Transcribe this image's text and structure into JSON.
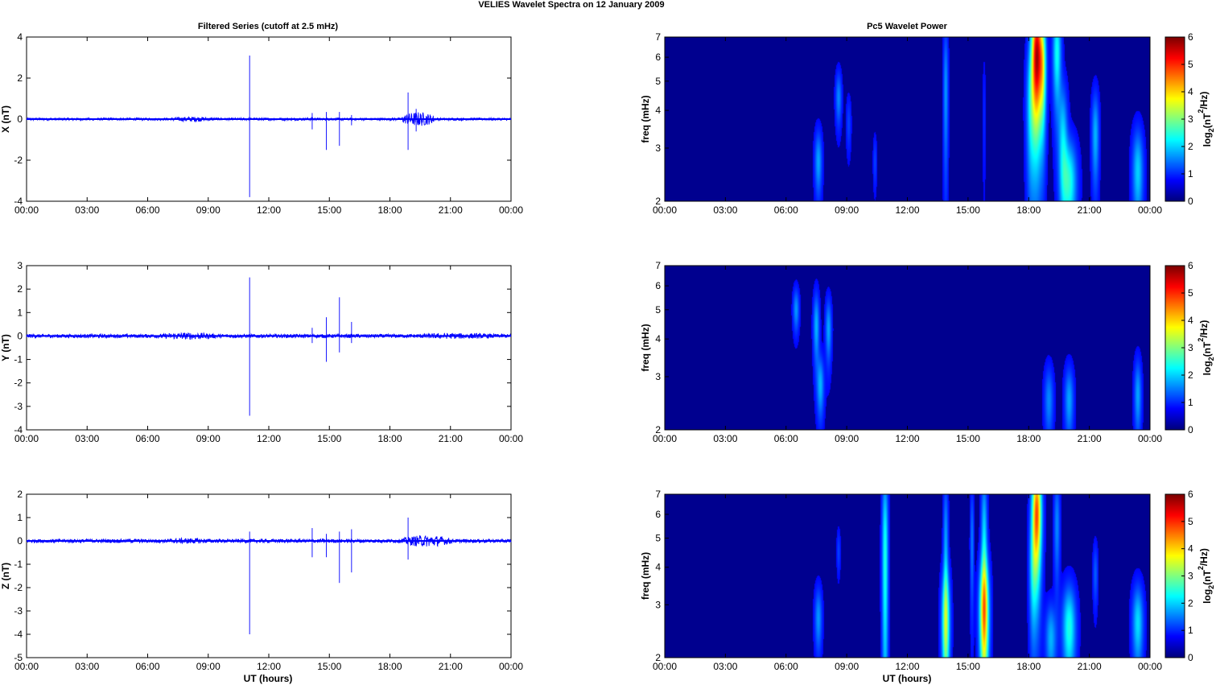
{
  "figure": {
    "title": "VELIES Wavelet Spectra on 12 January   2009",
    "left_title": "Filtered Series (cutoff at 2.5 mHz)",
    "right_title": "Pc5 Wavelet Power",
    "x_label": "UT (hours)"
  },
  "chart_data": [
    {
      "type": "line",
      "name": "X",
      "ylabel": "X (nT)",
      "xlim": [
        0,
        24
      ],
      "ylim": [
        -4,
        4
      ],
      "yticks": [
        -4,
        -2,
        0,
        2,
        4
      ],
      "xticks": [
        "00:00",
        "03:00",
        "06:00",
        "09:00",
        "12:00",
        "15:00",
        "18:00",
        "21:00",
        "00:00"
      ],
      "color": "#0000ff",
      "baseline_amplitude": 0.06,
      "spikes": [
        [
          11.05,
          3.1,
          -3.8
        ],
        [
          14.15,
          0.3,
          -0.5
        ],
        [
          14.85,
          0.35,
          -1.5
        ],
        [
          15.5,
          0.35,
          -1.3
        ],
        [
          16.1,
          0.2,
          -0.3
        ],
        [
          18.9,
          1.3,
          -1.5
        ],
        [
          19.3,
          0.5,
          -0.6
        ]
      ],
      "active_bursts": [
        [
          7.0,
          9.5,
          0.12
        ],
        [
          18.6,
          20.2,
          0.35
        ]
      ]
    },
    {
      "type": "line",
      "name": "Y",
      "ylabel": "Y (nT)",
      "xlim": [
        0,
        24
      ],
      "ylim": [
        -4,
        3
      ],
      "yticks": [
        -4,
        -3,
        -2,
        -1,
        0,
        1,
        2,
        3
      ],
      "xticks": [
        "00:00",
        "03:00",
        "06:00",
        "09:00",
        "12:00",
        "15:00",
        "18:00",
        "21:00",
        "00:00"
      ],
      "color": "#0000ff",
      "baseline_amplitude": 0.08,
      "spikes": [
        [
          11.05,
          2.5,
          -3.4
        ],
        [
          14.15,
          0.35,
          -0.3
        ],
        [
          14.85,
          0.8,
          -1.1
        ],
        [
          15.5,
          1.65,
          -0.7
        ],
        [
          16.1,
          0.6,
          -0.3
        ]
      ],
      "active_bursts": [
        [
          6.5,
          9.5,
          0.15
        ],
        [
          18.5,
          24,
          0.12
        ]
      ]
    },
    {
      "type": "line",
      "name": "Z",
      "ylabel": "Z (nT)",
      "xlim": [
        0,
        24
      ],
      "ylim": [
        -5,
        2
      ],
      "yticks": [
        -5,
        -4,
        -3,
        -2,
        -1,
        0,
        1,
        2
      ],
      "xticks": [
        "00:00",
        "03:00",
        "06:00",
        "09:00",
        "12:00",
        "15:00",
        "18:00",
        "21:00",
        "00:00"
      ],
      "color": "#0000ff",
      "baseline_amplitude": 0.08,
      "spikes": [
        [
          11.05,
          0.4,
          -4.0
        ],
        [
          14.15,
          0.55,
          -0.7
        ],
        [
          14.85,
          0.3,
          -0.7
        ],
        [
          15.5,
          0.4,
          -1.8
        ],
        [
          16.1,
          0.5,
          -1.35
        ],
        [
          18.9,
          1.0,
          -0.8
        ]
      ],
      "active_bursts": [
        [
          6.5,
          9.5,
          0.12
        ],
        [
          18.6,
          21,
          0.25
        ]
      ]
    },
    {
      "type": "heatmap",
      "name": "X",
      "ylabel": "freq (mHz)",
      "xlim": [
        0,
        24
      ],
      "ylim": [
        2,
        7
      ],
      "yscale": "log",
      "yticks": [
        2,
        3,
        4,
        5,
        6,
        7
      ],
      "xticks": [
        "00:00",
        "03:00",
        "06:00",
        "09:00",
        "12:00",
        "15:00",
        "18:00",
        "21:00",
        "00:00"
      ],
      "colorbar": {
        "label": "log2(nT^2/Hz)",
        "min": 0,
        "max": 6,
        "ticks": [
          0,
          1,
          2,
          3,
          4,
          5,
          6
        ]
      },
      "blobs": [
        [
          7.6,
          2.7,
          0.12,
          0.45,
          1.2
        ],
        [
          8.6,
          4.4,
          0.1,
          0.6,
          1.0
        ],
        [
          9.1,
          3.6,
          0.08,
          0.5,
          0.5
        ],
        [
          10.4,
          2.7,
          0.06,
          0.35,
          0.5
        ],
        [
          13.9,
          4.6,
          0.08,
          1.8,
          1.1
        ],
        [
          15.8,
          3.8,
          0.05,
          1.2,
          0.3
        ],
        [
          18.1,
          4.0,
          0.15,
          1.5,
          1.4
        ],
        [
          18.4,
          6.0,
          0.18,
          2.0,
          5.8
        ],
        [
          18.7,
          5.5,
          0.12,
          1.6,
          2.5
        ],
        [
          19.4,
          6.2,
          0.14,
          1.6,
          1.9
        ],
        [
          19.7,
          3.2,
          0.15,
          1.0,
          1.5
        ],
        [
          20.0,
          2.3,
          0.25,
          0.55,
          2.0
        ],
        [
          21.3,
          3.3,
          0.12,
          0.8,
          1.3
        ],
        [
          23.4,
          2.5,
          0.18,
          0.6,
          1.5
        ]
      ]
    },
    {
      "type": "heatmap",
      "name": "Y",
      "ylabel": "freq (mHz)",
      "xlim": [
        0,
        24
      ],
      "ylim": [
        2,
        7
      ],
      "yscale": "log",
      "yticks": [
        2,
        3,
        4,
        5,
        6,
        7
      ],
      "xticks": [
        "00:00",
        "03:00",
        "06:00",
        "09:00",
        "12:00",
        "15:00",
        "18:00",
        "21:00",
        "00:00"
      ],
      "colorbar": {
        "label": "log2(nT^2/Hz)",
        "min": 0,
        "max": 6,
        "ticks": [
          0,
          1,
          2,
          3,
          4,
          5,
          6
        ]
      },
      "blobs": [
        [
          6.5,
          5.0,
          0.1,
          0.55,
          1.1
        ],
        [
          7.5,
          4.4,
          0.1,
          0.8,
          1.3
        ],
        [
          7.7,
          2.8,
          0.12,
          0.45,
          1.3
        ],
        [
          8.1,
          4.3,
          0.1,
          0.7,
          1.2
        ],
        [
          19.0,
          2.5,
          0.15,
          0.45,
          1.0
        ],
        [
          20.0,
          2.5,
          0.15,
          0.45,
          1.2
        ],
        [
          23.4,
          2.6,
          0.12,
          0.5,
          1.2
        ]
      ]
    },
    {
      "type": "heatmap",
      "name": "Z",
      "ylabel": "freq (mHz)",
      "xlim": [
        0,
        24
      ],
      "ylim": [
        2,
        7
      ],
      "yscale": "log",
      "yticks": [
        2,
        3,
        4,
        5,
        6,
        7
      ],
      "xticks": [
        "00:00",
        "03:00",
        "06:00",
        "09:00",
        "12:00",
        "15:00",
        "18:00",
        "21:00",
        "00:00"
      ],
      "colorbar": {
        "label": "log2(nT^2/Hz)",
        "min": 0,
        "max": 6,
        "ticks": [
          0,
          1,
          2,
          3,
          4,
          5,
          6
        ]
      },
      "blobs": [
        [
          7.6,
          2.7,
          0.12,
          0.45,
          1.1
        ],
        [
          8.6,
          4.5,
          0.06,
          0.5,
          0.5
        ],
        [
          10.9,
          4.2,
          0.1,
          2.5,
          2.0
        ],
        [
          13.9,
          2.6,
          0.14,
          0.8,
          2.6
        ],
        [
          13.9,
          4.5,
          0.08,
          2.0,
          1.2
        ],
        [
          15.2,
          4.8,
          0.06,
          1.5,
          0.9
        ],
        [
          15.8,
          2.8,
          0.16,
          0.9,
          3.8
        ],
        [
          15.8,
          4.8,
          0.1,
          2.0,
          1.6
        ],
        [
          18.4,
          6.0,
          0.16,
          1.8,
          4.8
        ],
        [
          18.2,
          3.8,
          0.12,
          1.2,
          1.2
        ],
        [
          19.1,
          2.3,
          0.18,
          0.45,
          1.3
        ],
        [
          19.4,
          5.5,
          0.1,
          1.5,
          1.0
        ],
        [
          20.0,
          2.5,
          0.22,
          0.6,
          2.0
        ],
        [
          21.3,
          3.8,
          0.08,
          0.6,
          0.7
        ],
        [
          23.4,
          2.6,
          0.18,
          0.55,
          1.6
        ]
      ]
    }
  ]
}
